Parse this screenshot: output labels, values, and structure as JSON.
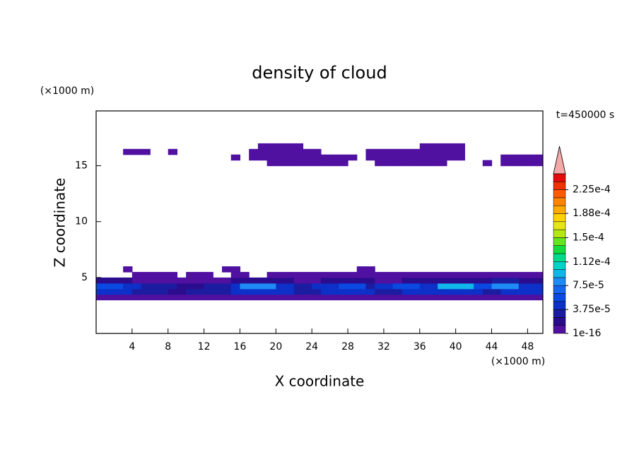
{
  "chart_data": {
    "type": "contour",
    "title": "density of cloud",
    "x_label": "X coordinate",
    "y_label": "Z coordinate",
    "x_unit": "(×1000 m)",
    "y_unit": "(×1000 m)",
    "annotation": "t=450000 s",
    "xlim": [
      0,
      49.7
    ],
    "xticks": [
      4,
      8,
      12,
      16,
      20,
      24,
      28,
      32,
      36,
      40,
      44,
      48
    ],
    "ylim": [
      0,
      19.9
    ],
    "yticks": [
      5,
      10,
      15
    ],
    "clim": [
      0,
      0.00025
    ],
    "cticks": [
      1e-16,
      {
        "value": 3.75e-05,
        "label": "3.75e-5"
      },
      {
        "value": 7.5e-05,
        "label": "7.5e-5"
      },
      {
        "value": 0.000112,
        "label": "1.12e-4"
      },
      {
        "value": 0.00015,
        "label": "1.5e-4"
      },
      {
        "value": 0.000188,
        "label": "1.88e-4"
      },
      {
        "value": 0.000225,
        "label": "2.25e-4"
      }
    ],
    "colors": [
      "#5010a0",
      "#2a0c8c",
      "#1c1ca0",
      "#0c30c8",
      "#0a4ae2",
      "#1466f0",
      "#1e8cf4",
      "#10b8ea",
      "#00d4c8",
      "#00dc8c",
      "#14dc3c",
      "#64e61e",
      "#b4e614",
      "#e6e614",
      "#ffd200",
      "#ffaa00",
      "#ff8200",
      "#ff5a00",
      "#f03200",
      "#e60a0a"
    ],
    "over_color": "#f4a8a8",
    "x": [
      0.5,
      1.5,
      2.5,
      3.5,
      4.5,
      5.5,
      6.5,
      7.5,
      8.5,
      9.5,
      10.5,
      11.5,
      12.5,
      13.5,
      14.5,
      15.5,
      16.5,
      17.5,
      18.5,
      19.5,
      20.5,
      21.5,
      22.5,
      23.5,
      24.5,
      25.5,
      26.5,
      27.5,
      28.5,
      29.5,
      30.5,
      31.5,
      32.5,
      33.5,
      34.5,
      35.5,
      36.5,
      37.5,
      38.5,
      39.5,
      40.5,
      41.5,
      42.5,
      43.5,
      44.5,
      45.5,
      46.5,
      47.5,
      48.5,
      49.5
    ],
    "z": [
      3.25,
      3.75,
      4.25,
      4.75,
      5.25,
      5.75,
      15.25,
      15.75,
      16.25,
      16.75
    ],
    "values": [
      [
        5e-06,
        5e-06,
        5e-06,
        5e-06,
        5e-06,
        5e-06,
        5e-06,
        5e-06,
        5e-06,
        5e-06,
        5e-06,
        5e-06,
        5e-06,
        5e-06,
        5e-06,
        5e-06,
        5e-06,
        5e-06,
        5e-06,
        5e-06,
        5e-06,
        5e-06,
        5e-06,
        5e-06,
        5e-06,
        5e-06,
        5e-06,
        5e-06,
        5e-06,
        5e-06,
        5e-06,
        5e-06,
        5e-06,
        5e-06,
        5e-06,
        5e-06,
        5e-06,
        5e-06,
        5e-06,
        5e-06,
        5e-06,
        5e-06,
        5e-06,
        5e-06,
        5e-06,
        5e-06,
        5e-06,
        5e-06,
        5e-06,
        5e-06
      ],
      [
        4.5e-05,
        4.5e-05,
        4.5e-05,
        4.5e-05,
        3e-05,
        3e-05,
        3e-05,
        3e-05,
        2e-05,
        2e-05,
        3e-05,
        3e-05,
        3e-05,
        3e-05,
        3e-05,
        4.5e-05,
        4.5e-05,
        4.5e-05,
        4.5e-05,
        4.5e-05,
        4.5e-05,
        4.5e-05,
        3e-05,
        3e-05,
        3e-05,
        4.5e-05,
        4.5e-05,
        4.5e-05,
        4.5e-05,
        4.5e-05,
        4.5e-05,
        3e-05,
        3e-05,
        3e-05,
        4.5e-05,
        4.5e-05,
        4.5e-05,
        4.5e-05,
        4.5e-05,
        4.5e-05,
        4.5e-05,
        4.5e-05,
        4.5e-05,
        3e-05,
        3e-05,
        4.5e-05,
        4.5e-05,
        4.5e-05,
        4.5e-05,
        4.5e-05
      ],
      [
        6e-05,
        6e-05,
        6e-05,
        4.5e-05,
        4.5e-05,
        3e-05,
        3e-05,
        3e-05,
        3e-05,
        2e-05,
        2e-05,
        2e-05,
        3e-05,
        3e-05,
        3e-05,
        4.5e-05,
        7.5e-05,
        7.5e-05,
        7.5e-05,
        7.5e-05,
        4.5e-05,
        4.5e-05,
        3e-05,
        3e-05,
        4.5e-05,
        4.5e-05,
        4.5e-05,
        6e-05,
        6e-05,
        6e-05,
        3e-05,
        4.5e-05,
        4.5e-05,
        6e-05,
        6e-05,
        6e-05,
        4.5e-05,
        4.5e-05,
        9e-05,
        9e-05,
        9e-05,
        9e-05,
        6e-05,
        6e-05,
        7.5e-05,
        7.5e-05,
        7.5e-05,
        4.5e-05,
        4.5e-05,
        4.5e-05
      ],
      [
        2e-05,
        2e-05,
        2e-05,
        2e-05,
        5e-06,
        5e-06,
        5e-06,
        5e-06,
        5e-06,
        5e-06,
        5e-06,
        5e-06,
        5e-06,
        5e-06,
        5e-06,
        2e-05,
        2e-05,
        2e-05,
        2e-05,
        2e-05,
        2e-05,
        2e-05,
        5e-06,
        5e-06,
        5e-06,
        2e-05,
        2e-05,
        2e-05,
        2e-05,
        2e-05,
        2e-05,
        5e-06,
        5e-06,
        5e-06,
        2e-05,
        2e-05,
        2e-05,
        2e-05,
        2e-05,
        2e-05,
        2e-05,
        2e-05,
        2e-05,
        2e-05,
        3e-05,
        3e-05,
        3e-05,
        2e-05,
        2e-05,
        2e-05
      ],
      [
        null,
        null,
        null,
        null,
        5e-06,
        5e-06,
        5e-06,
        5e-06,
        5e-06,
        null,
        5e-06,
        5e-06,
        5e-06,
        null,
        null,
        5e-06,
        5e-06,
        null,
        null,
        5e-06,
        5e-06,
        5e-06,
        5e-06,
        5e-06,
        5e-06,
        5e-06,
        5e-06,
        5e-06,
        5e-06,
        5e-06,
        5e-06,
        5e-06,
        5e-06,
        5e-06,
        5e-06,
        5e-06,
        5e-06,
        5e-06,
        5e-06,
        5e-06,
        5e-06,
        5e-06,
        5e-06,
        5e-06,
        5e-06,
        5e-06,
        5e-06,
        5e-06,
        5e-06,
        5e-06
      ],
      [
        null,
        null,
        null,
        5e-06,
        null,
        null,
        null,
        null,
        null,
        null,
        null,
        null,
        null,
        null,
        5e-06,
        5e-06,
        null,
        null,
        null,
        null,
        null,
        null,
        null,
        null,
        null,
        null,
        null,
        null,
        null,
        5e-06,
        5e-06,
        null,
        null,
        null,
        null,
        null,
        null,
        null,
        null,
        null,
        null,
        null,
        null,
        null,
        null,
        null,
        null,
        null,
        null,
        null
      ],
      [
        null,
        null,
        null,
        null,
        null,
        null,
        null,
        null,
        null,
        null,
        null,
        null,
        null,
        null,
        null,
        null,
        null,
        null,
        null,
        5e-06,
        5e-06,
        5e-06,
        5e-06,
        5e-06,
        5e-06,
        5e-06,
        5e-06,
        5e-06,
        null,
        null,
        null,
        5e-06,
        5e-06,
        5e-06,
        5e-06,
        5e-06,
        5e-06,
        5e-06,
        5e-06,
        null,
        null,
        null,
        null,
        5e-06,
        null,
        5e-06,
        5e-06,
        5e-06,
        5e-06,
        5e-06
      ],
      [
        null,
        null,
        null,
        null,
        null,
        null,
        null,
        null,
        null,
        null,
        null,
        null,
        null,
        null,
        null,
        5e-06,
        null,
        5e-06,
        5e-06,
        5e-06,
        5e-06,
        5e-06,
        5e-06,
        5e-06,
        5e-06,
        5e-06,
        5e-06,
        5e-06,
        5e-06,
        null,
        5e-06,
        5e-06,
        5e-06,
        5e-06,
        5e-06,
        5e-06,
        5e-06,
        5e-06,
        5e-06,
        5e-06,
        5e-06,
        null,
        null,
        null,
        null,
        5e-06,
        5e-06,
        5e-06,
        5e-06,
        5e-06
      ],
      [
        null,
        null,
        null,
        5e-06,
        5e-06,
        5e-06,
        null,
        null,
        5e-06,
        null,
        null,
        null,
        null,
        null,
        null,
        null,
        null,
        5e-06,
        5e-06,
        5e-06,
        5e-06,
        5e-06,
        5e-06,
        5e-06,
        5e-06,
        null,
        null,
        null,
        null,
        null,
        5e-06,
        5e-06,
        5e-06,
        5e-06,
        5e-06,
        5e-06,
        5e-06,
        5e-06,
        5e-06,
        5e-06,
        5e-06,
        null,
        null,
        null,
        null,
        null,
        null,
        null,
        null,
        null
      ],
      [
        null,
        null,
        null,
        null,
        null,
        null,
        null,
        null,
        null,
        null,
        null,
        null,
        null,
        null,
        null,
        null,
        null,
        null,
        5e-06,
        5e-06,
        5e-06,
        5e-06,
        5e-06,
        null,
        null,
        null,
        null,
        null,
        null,
        null,
        null,
        null,
        null,
        null,
        null,
        null,
        5e-06,
        5e-06,
        5e-06,
        5e-06,
        5e-06,
        null,
        null,
        null,
        null,
        null,
        null,
        null,
        null,
        null
      ]
    ]
  }
}
